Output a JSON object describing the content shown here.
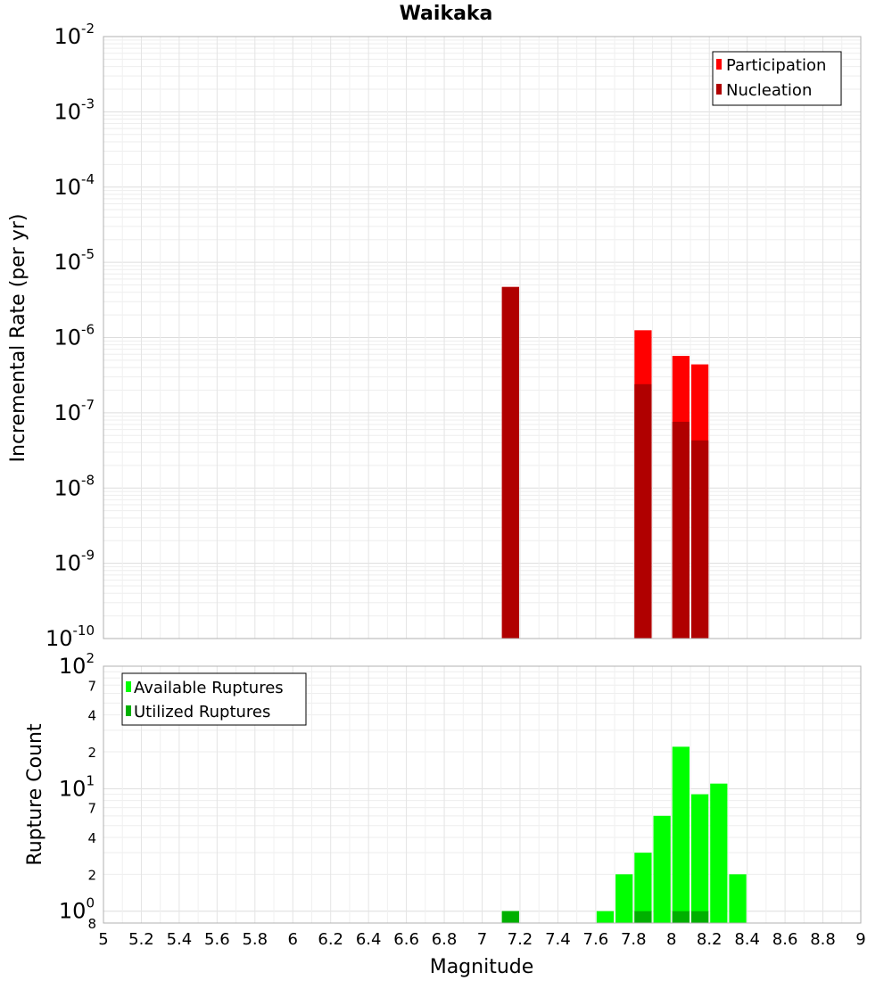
{
  "chart_data": [
    {
      "type": "bar",
      "title": "Waikaka",
      "xlabel": "",
      "ylabel": "Incremental Rate (per yr)",
      "y_scale": "log",
      "xlim": [
        5,
        9
      ],
      "ylim": [
        1e-10,
        0.01
      ],
      "y_ticks": [
        {
          "base": "10",
          "exp": "-10"
        },
        {
          "base": "10",
          "exp": "-9"
        },
        {
          "base": "10",
          "exp": "-8"
        },
        {
          "base": "10",
          "exp": "-7"
        },
        {
          "base": "10",
          "exp": "-6"
        },
        {
          "base": "10",
          "exp": "-5"
        },
        {
          "base": "10",
          "exp": "-4"
        },
        {
          "base": "10",
          "exp": "-3"
        },
        {
          "base": "10",
          "exp": "-2"
        }
      ],
      "legend": {
        "placement": "top-right"
      },
      "series": [
        {
          "name": "Participation",
          "color": "#ff0000",
          "bars": [
            {
              "x": 7.15,
              "y": 4.7e-06
            },
            {
              "x": 7.85,
              "y": 1.25e-06
            },
            {
              "x": 8.05,
              "y": 5.7e-07
            },
            {
              "x": 8.15,
              "y": 4.4e-07
            }
          ]
        },
        {
          "name": "Nucleation",
          "color": "#b00000",
          "bars": [
            {
              "x": 7.15,
              "y": 4.7e-06
            },
            {
              "x": 7.85,
              "y": 2.4e-07
            },
            {
              "x": 8.05,
              "y": 7.6e-08
            },
            {
              "x": 8.15,
              "y": 4.3e-08
            }
          ]
        }
      ]
    },
    {
      "type": "bar",
      "title": "",
      "xlabel": "Magnitude",
      "ylabel": "Rupture Count",
      "y_scale": "log",
      "xlim": [
        5,
        9
      ],
      "ylim": [
        0.8,
        100
      ],
      "x_ticks": [
        "5",
        "5.2",
        "5.4",
        "5.6",
        "5.8",
        "6",
        "6.2",
        "6.4",
        "6.6",
        "6.8",
        "7",
        "7.2",
        "7.4",
        "7.6",
        "7.8",
        "8",
        "8.2",
        "8.4",
        "8.6",
        "8.8",
        "9"
      ],
      "y_major_ticks": [
        {
          "value": 1,
          "base": "10",
          "exp": "0"
        },
        {
          "value": 10,
          "base": "10",
          "exp": "1"
        },
        {
          "value": 100,
          "base": "10",
          "exp": "2"
        }
      ],
      "y_minor_ticks": [
        {
          "value": 0.8,
          "label": "8"
        },
        {
          "value": 2,
          "label": "2"
        },
        {
          "value": 4,
          "label": "4"
        },
        {
          "value": 7,
          "label": "7"
        },
        {
          "value": 20,
          "label": "2"
        },
        {
          "value": 40,
          "label": "4"
        },
        {
          "value": 70,
          "label": "7"
        }
      ],
      "legend": {
        "placement": "top-left"
      },
      "series": [
        {
          "name": "Available Ruptures",
          "color": "#00ff00",
          "bars": [
            {
              "x": 7.15,
              "y": 1
            },
            {
              "x": 7.65,
              "y": 1
            },
            {
              "x": 7.75,
              "y": 2
            },
            {
              "x": 7.85,
              "y": 3
            },
            {
              "x": 7.95,
              "y": 6
            },
            {
              "x": 8.05,
              "y": 22
            },
            {
              "x": 8.15,
              "y": 9
            },
            {
              "x": 8.25,
              "y": 11
            },
            {
              "x": 8.35,
              "y": 2
            }
          ]
        },
        {
          "name": "Utilized Ruptures",
          "color": "#00b000",
          "bars": [
            {
              "x": 7.15,
              "y": 1
            },
            {
              "x": 7.85,
              "y": 1
            },
            {
              "x": 8.05,
              "y": 1
            },
            {
              "x": 8.15,
              "y": 1
            }
          ]
        }
      ]
    }
  ]
}
